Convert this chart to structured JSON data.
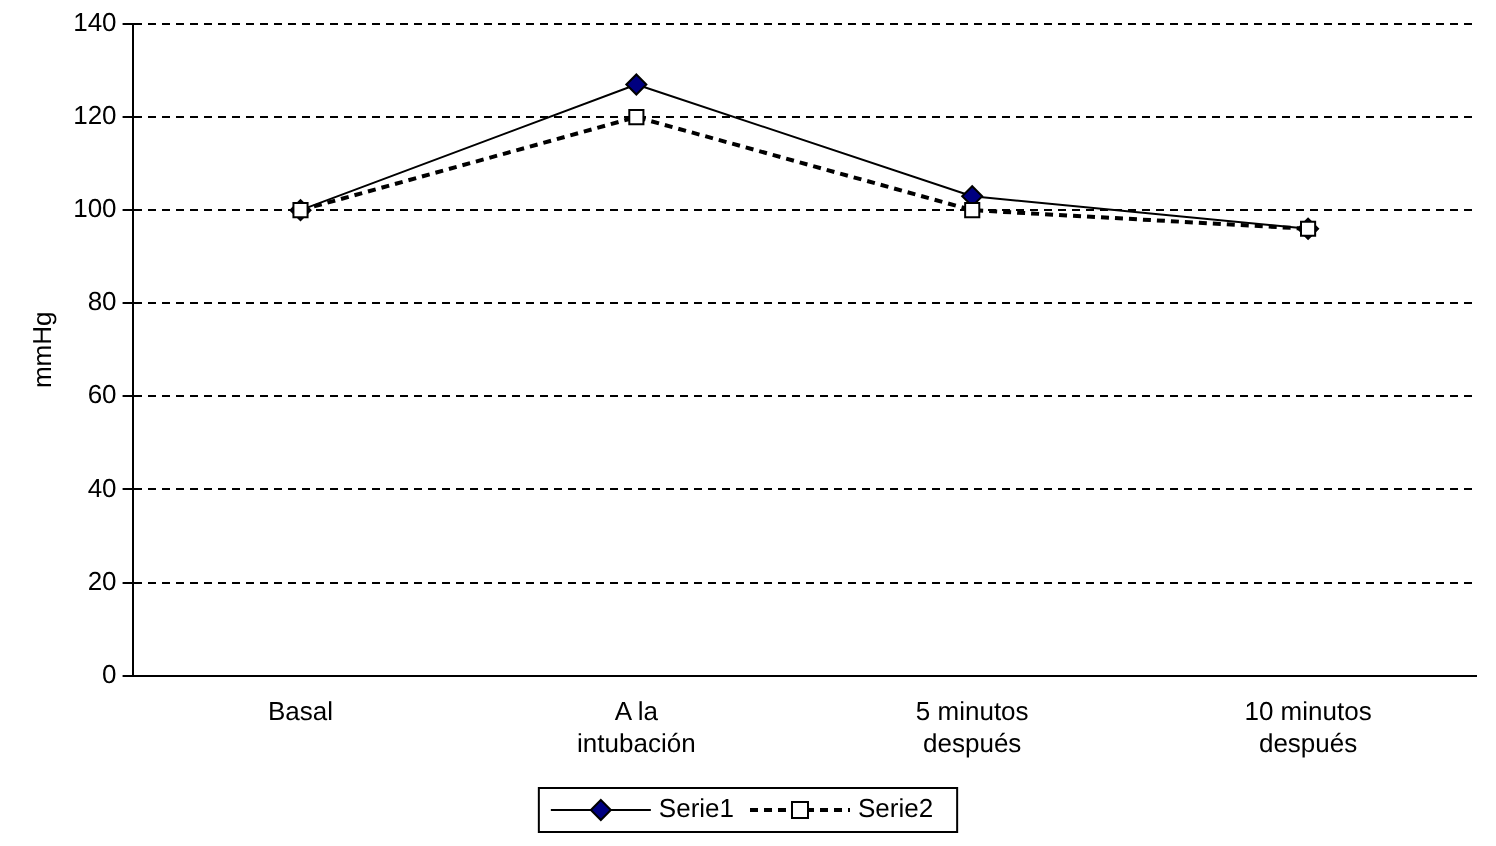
{
  "chart_data": {
    "type": "line",
    "ylabel": "mmHg",
    "categories": [
      "Basal",
      "A la intubación",
      "5 minutos después",
      "10 minutos después"
    ],
    "series": [
      {
        "name": "Serie1",
        "color": "#000080",
        "values": [
          100,
          127,
          103,
          96
        ],
        "marker": "diamond",
        "line_style": "solid"
      },
      {
        "name": "Serie2",
        "color": "#000000",
        "values": [
          100,
          120,
          100,
          96
        ],
        "marker": "square",
        "line_style": "dashed"
      }
    ],
    "ylim": [
      0,
      140
    ],
    "yticks": [
      0,
      20,
      40,
      60,
      80,
      100,
      120,
      140
    ],
    "grid": "y",
    "legend": "bottom"
  }
}
